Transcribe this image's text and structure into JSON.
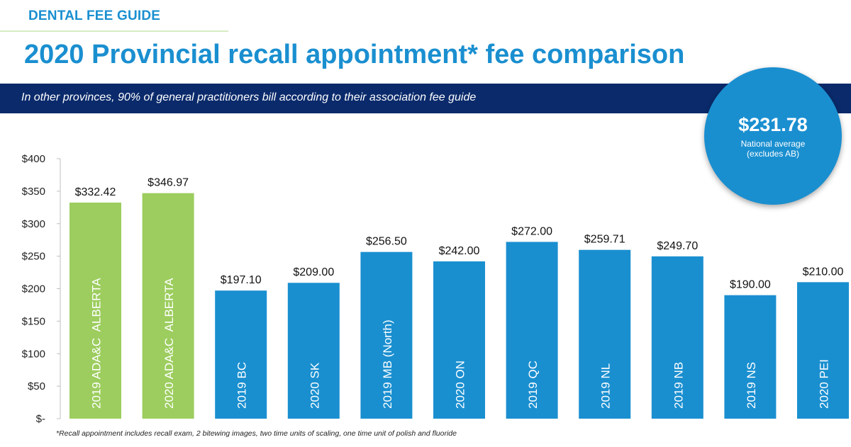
{
  "header": {
    "eyebrow": "DENTAL FEE GUIDE",
    "title": "2020 Provincial recall appointment* fee comparison",
    "banner": "In other provinces, 90% of general practitioners bill according to their association fee guide"
  },
  "callout": {
    "value": "$231.78",
    "label_line1": "National average",
    "label_line2": "(excludes AB)"
  },
  "footnote": "*Recall appointment includes recall exam, 2 bitewing images, two time units of scaling, one time unit of polish and fluoride",
  "colors": {
    "alberta": "#9ccd5e",
    "other": "#1a8fd0",
    "title": "#1a8fd0",
    "banner": "#0a2a6b"
  },
  "chart_data": {
    "type": "bar",
    "title": "2020 Provincial recall appointment* fee comparison",
    "ylim": [
      0,
      400
    ],
    "yticks": [
      0,
      50,
      100,
      150,
      200,
      250,
      300,
      350,
      400
    ],
    "ytick_labels": [
      "$-",
      "$50",
      "$100",
      "$150",
      "$200",
      "$250",
      "$300",
      "$350",
      "$400"
    ],
    "grid": false,
    "categories": [
      "2019 ADA&C  ALBERTA",
      "2020 ADA&C  ALBERTA",
      "2019 BC",
      "2020 SK",
      "2019 MB (North)",
      "2020 ON",
      "2019 QC",
      "2019 NL",
      "2019 NB",
      "2019 NS",
      "2020 PEI"
    ],
    "values": [
      332.42,
      346.97,
      197.1,
      209.0,
      256.5,
      242.0,
      272.0,
      259.71,
      249.7,
      190.0,
      210.0
    ],
    "value_labels": [
      "$332.42",
      "$346.97",
      "$197.10",
      "$209.00",
      "$256.50",
      "$242.00",
      "$272.00",
      "$259.71",
      "$249.70",
      "$190.00",
      "$210.00"
    ],
    "bar_color_group": [
      "alberta",
      "alberta",
      "other",
      "other",
      "other",
      "other",
      "other",
      "other",
      "other",
      "other",
      "other"
    ]
  }
}
